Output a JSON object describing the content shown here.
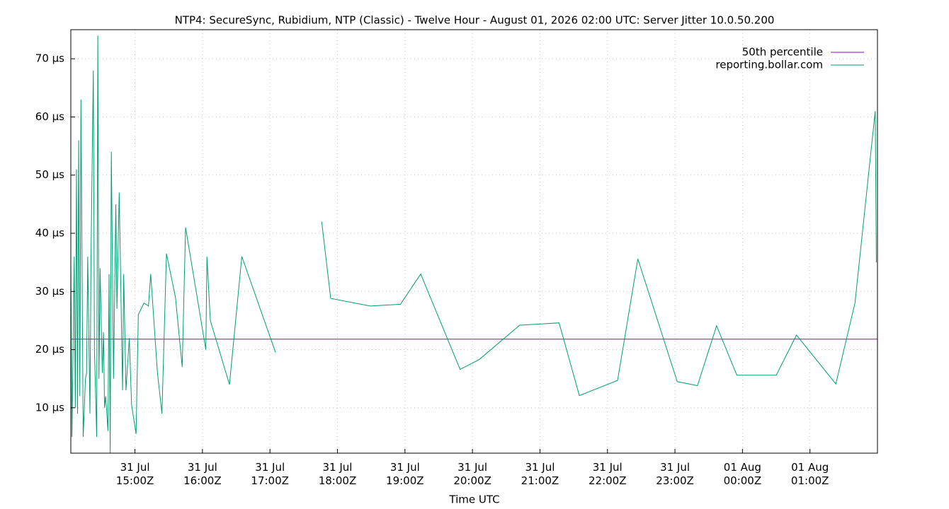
{
  "chart_data": {
    "type": "line",
    "title": "NTP4: SecureSync, Rubidium, NTP (Classic) - Twelve Hour - August 01, 2026 02:00 UTC: Server Jitter 10.0.50.200",
    "x_label": "Time UTC",
    "xlim": [
      "31 Jul 14:03Z",
      "01 Aug 02:00Z"
    ],
    "xticks": [
      "31 Jul 15:00Z",
      "31 Jul 16:00Z",
      "31 Jul 17:00Z",
      "31 Jul 18:00Z",
      "31 Jul 19:00Z",
      "31 Jul 20:00Z",
      "31 Jul 21:00Z",
      "31 Jul 22:00Z",
      "31 Jul 23:00Z",
      "01 Aug 00:00Z",
      "01 Aug 01:00Z"
    ],
    "ylim": [
      2.2,
      75
    ],
    "yticks": [
      {
        "value": 10,
        "label": "10 µs"
      },
      {
        "value": 20,
        "label": "20 µs"
      },
      {
        "value": 30,
        "label": "30 µs"
      },
      {
        "value": 40,
        "label": "40 µs"
      },
      {
        "value": 50,
        "label": "50 µs"
      },
      {
        "value": 60,
        "label": "60 µs"
      },
      {
        "value": 70,
        "label": "70 µs"
      }
    ],
    "grid": true,
    "legend": "top-right",
    "series": [
      {
        "name": "50th percentile",
        "color": "#9400d3",
        "x": [
          "31 Jul 14:03Z",
          "01 Aug 02:00Z"
        ],
        "values": [
          21.8,
          21.8
        ]
      },
      {
        "name": "reporting.bollar.com",
        "color": "#009e73",
        "x": [
          "31 Jul 14:03Z",
          "31 Jul 14:04Z",
          "31 Jul 14:06Z",
          "31 Jul 14:07Z",
          "31 Jul 14:08Z",
          "31 Jul 14:09Z",
          "31 Jul 14:10Z",
          "31 Jul 14:11Z",
          "31 Jul 14:12Z",
          "31 Jul 14:14Z",
          "31 Jul 14:16Z",
          "31 Jul 14:17Z",
          "31 Jul 14:18Z",
          "31 Jul 14:20Z",
          "31 Jul 14:21Z",
          "31 Jul 14:23Z",
          "31 Jul 14:24Z",
          "31 Jul 14:26Z",
          "31 Jul 14:27Z",
          "31 Jul 14:28Z",
          "31 Jul 14:29Z",
          "31 Jul 14:31Z",
          "31 Jul 14:32Z",
          "31 Jul 14:33Z",
          "31 Jul 14:34Z",
          "31 Jul 14:36Z",
          "31 Jul 14:37Z",
          "31 Jul 14:38Z",
          "31 Jul 14:39Z",
          "31 Jul 14:41Z",
          "31 Jul 14:43Z",
          "31 Jul 14:44Z",
          "31 Jul 14:46Z",
          "31 Jul 14:49Z",
          "31 Jul 14:50Z",
          "31 Jul 14:52Z",
          "31 Jul 14:55Z",
          "31 Jul 14:57Z",
          "31 Jul 15:01Z",
          "31 Jul 15:03Z",
          "31 Jul 15:08Z",
          "31 Jul 15:12Z",
          "31 Jul 15:14Z",
          "31 Jul 15:20Z",
          "31 Jul 15:24Z",
          "31 Jul 15:28Z",
          "31 Jul 15:36Z",
          "31 Jul 15:42Z",
          "31 Jul 15:45Z",
          "31 Jul 16:03Z",
          "31 Jul 16:04Z",
          "31 Jul 16:07Z",
          "31 Jul 16:24Z",
          "31 Jul 16:35Z",
          "31 Jul 17:05Z",
          "31 Jul 17:25Z",
          "31 Jul 17:46Z",
          "31 Jul 17:54Z",
          "31 Jul 18:29Z",
          "31 Jul 18:56Z",
          "31 Jul 19:14Z",
          "31 Jul 19:49Z",
          "31 Jul 20:06Z",
          "31 Jul 20:42Z",
          "31 Jul 21:17Z",
          "31 Jul 21:35Z",
          "31 Jul 22:09Z",
          "31 Jul 22:27Z",
          "31 Jul 23:02Z",
          "31 Jul 23:20Z",
          "31 Jul 23:37Z",
          "31 Jul 23:55Z",
          "01 Aug 00:30Z",
          "01 Aug 00:48Z",
          "01 Aug 01:23Z",
          "01 Aug 01:40Z",
          "01 Aug 01:58Z",
          "01 Aug 01:59Z"
        ],
        "values": [
          35,
          5,
          36,
          10,
          51,
          9,
          56,
          12,
          63,
          5,
          15,
          16,
          36,
          9,
          37,
          68,
          20,
          5,
          74,
          15,
          34,
          16,
          23,
          10,
          12,
          6,
          33,
          2.2,
          54,
          15,
          45,
          27,
          47,
          13,
          33,
          13,
          22,
          10.5,
          5.5,
          26,
          28,
          27.5,
          33,
          16,
          9,
          36.5,
          29,
          17,
          41,
          20,
          36,
          25,
          14,
          36,
          19.5,
          null,
          42,
          28.8,
          27.5,
          27.8,
          33,
          16.6,
          18.3,
          24.2,
          24.6,
          12.1,
          14.7,
          35.6,
          14.5,
          13.8,
          24.1,
          15.6,
          15.6,
          22.5,
          14.1,
          28,
          61,
          35
        ]
      }
    ]
  }
}
